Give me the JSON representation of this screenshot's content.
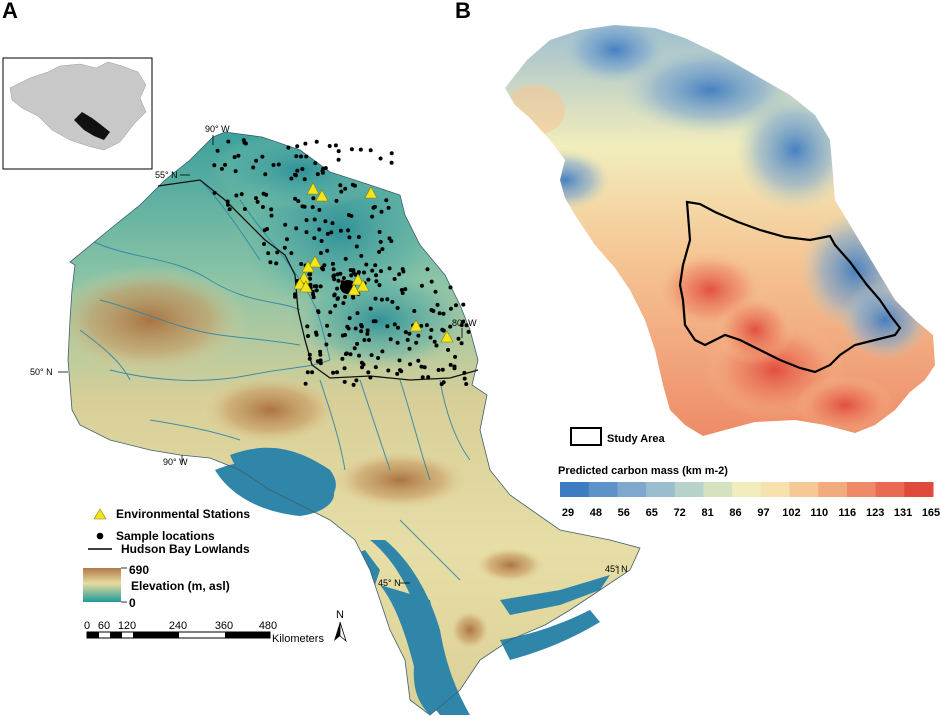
{
  "panel_a": {
    "label": "A",
    "coordinates": {
      "lon_90_top": "90° W",
      "lat_55": "55° N",
      "lon_80": "80° W",
      "lat_50": "50° N",
      "lon_90_bottom": "90° W",
      "lat_45_left": "45° N",
      "lat_45_right": "45° N"
    },
    "legend": {
      "stations": "Environmental Stations",
      "samples": "Sample locations",
      "lowlands": "Hudson Bay Lowlands",
      "elevation_max": "690",
      "elevation_label": "Elevation (m, asl)",
      "elevation_min": "0"
    },
    "scale_bar": {
      "ticks": [
        "0",
        "60",
        "120",
        "240",
        "360",
        "480"
      ],
      "unit": "Kilometers"
    },
    "north_arrow": "N",
    "colors": {
      "water": "#2f86a8",
      "lowland_teal": "#3f9c9a",
      "high_brown": "#b8864e",
      "mid_yellow": "#e4d99a",
      "station_yellow": "#f2e51c"
    }
  },
  "panel_b": {
    "label": "B",
    "study_area_label": "Study Area",
    "legend_title": "Predicted carbon mass (km m-2)",
    "class_breaks": [
      "29",
      "48",
      "56",
      "65",
      "72",
      "81",
      "86",
      "97",
      "102",
      "110",
      "116",
      "123",
      "131",
      "165"
    ],
    "class_colors": [
      "#3e7cc1",
      "#5d93c8",
      "#7fa8cf",
      "#9bbdd0",
      "#b7d2c8",
      "#d6e2bf",
      "#f2edbc",
      "#f7e2ad",
      "#f5c896",
      "#f2aa7f",
      "#ee8a67",
      "#e86a52",
      "#e04a3c"
    ]
  }
}
